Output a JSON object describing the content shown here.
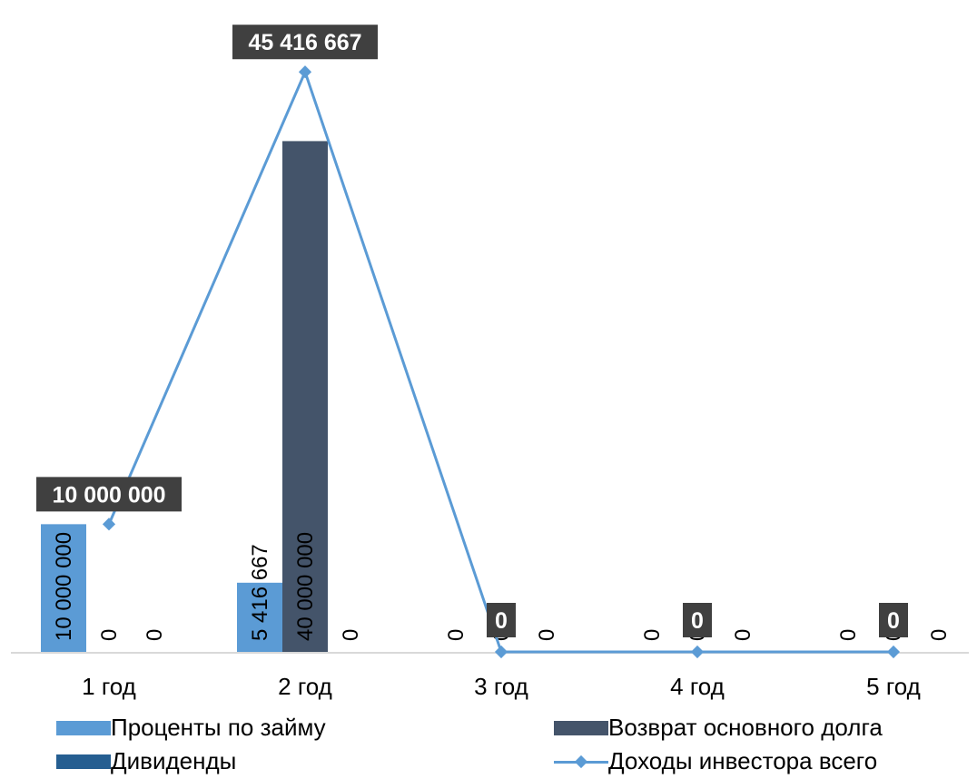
{
  "chart_data": {
    "type": "bar",
    "categories": [
      "1 год",
      "2 год",
      "3 год",
      "4 год",
      "5 год"
    ],
    "series": [
      {
        "name": "Проценты по займу",
        "type": "bar",
        "color": "#5b9bd5",
        "values": [
          10000000,
          5416667,
          0,
          0,
          0
        ],
        "labels": [
          "10 000 000",
          "5 416 667",
          "0",
          "0",
          "0"
        ]
      },
      {
        "name": "Возврат основного долга",
        "type": "bar",
        "color": "#44546a",
        "values": [
          0,
          40000000,
          0,
          0,
          0
        ],
        "labels": [
          "0",
          "40 000 000",
          "0",
          "0",
          "0"
        ]
      },
      {
        "name": "Дивиденды",
        "type": "bar",
        "color": "#255e91",
        "values": [
          0,
          0,
          0,
          0,
          0
        ],
        "labels": [
          "0",
          "0",
          "0",
          "0",
          "0"
        ]
      },
      {
        "name": "Доходы инвестора всего",
        "type": "line",
        "color": "#5b9bd5",
        "values": [
          10000000,
          45416667,
          0,
          0,
          0
        ],
        "labels": [
          "10 000 000",
          "45 416 667",
          "0",
          "0",
          "0"
        ]
      }
    ],
    "ylim": [
      0,
      46500000
    ],
    "grid": false,
    "legend_position": "bottom",
    "title": "",
    "xlabel": "",
    "ylabel": ""
  }
}
